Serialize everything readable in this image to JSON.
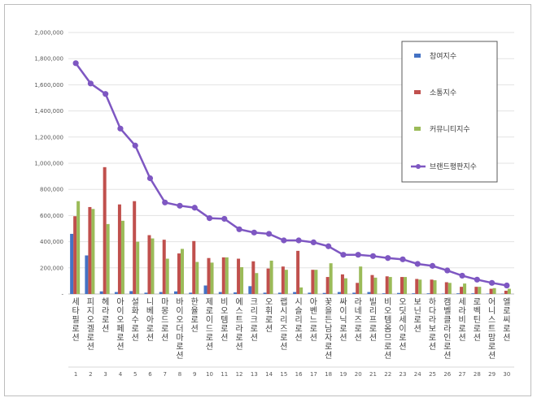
{
  "chart_data": {
    "type": "bar",
    "ylim": [
      0,
      2000000
    ],
    "yticks": [
      "-",
      "200,000",
      "400,000",
      "600,000",
      "800,000",
      "1,000,000",
      "1,200,000",
      "1,400,000",
      "1,600,000",
      "1,800,000",
      "2,000,000"
    ],
    "ytick_values": [
      0,
      200000,
      400000,
      600000,
      800000,
      1000000,
      1200000,
      1400000,
      1600000,
      1800000,
      2000000
    ],
    "categories": [
      "세타필로션",
      "피지오겔로션",
      "헤라로션",
      "아이오페로션",
      "설화수로션",
      "니베아로션",
      "마몽드로션",
      "바이오더마로션",
      "한율로션",
      "제로이드로션",
      "비오템로션",
      "에스트라로션",
      "크리크로션",
      "오휘로션",
      "랩시리즈로션",
      "시슬리로션",
      "아벤느로션",
      "꽃을든남자로션",
      "싸이닉로션",
      "라네즈로션",
      "빌리프로션",
      "비오템옴므로션",
      "오딧세이로션",
      "보닌로션",
      "하다라보로션",
      "캠벨클라인로션",
      "세라비로션",
      "로벡틴로션",
      "어니스트맘로션",
      "엘로씨로션"
    ],
    "ranks": [
      "1",
      "2",
      "3",
      "4",
      "5",
      "6",
      "7",
      "8",
      "9",
      "10",
      "11",
      "12",
      "13",
      "14",
      "15",
      "16",
      "17",
      "18",
      "19",
      "20",
      "21",
      "22",
      "23",
      "24",
      "25",
      "26",
      "27",
      "28",
      "29",
      "30"
    ],
    "legend_position": "right",
    "series": [
      {
        "name": "참여지수",
        "type": "bar",
        "color": "#4472c4",
        "values": [
          460000,
          295000,
          20000,
          15000,
          22000,
          10000,
          15000,
          20000,
          10000,
          65000,
          15000,
          12000,
          60000,
          10000,
          10000,
          15000,
          10000,
          8000,
          15000,
          10000,
          15000,
          5000,
          8000,
          5000,
          5000,
          3000,
          5000,
          5000,
          3000,
          2000
        ]
      },
      {
        "name": "소통지수",
        "type": "bar",
        "color": "#c0504d",
        "values": [
          595000,
          665000,
          970000,
          685000,
          710000,
          450000,
          415000,
          310000,
          405000,
          275000,
          280000,
          270000,
          250000,
          195000,
          210000,
          330000,
          185000,
          130000,
          150000,
          85000,
          145000,
          135000,
          130000,
          115000,
          110000,
          90000,
          55000,
          55000,
          40000,
          25000
        ]
      },
      {
        "name": "커뮤니티지수",
        "type": "bar",
        "color": "#9bbb59",
        "values": [
          710000,
          650000,
          535000,
          560000,
          400000,
          425000,
          270000,
          345000,
          245000,
          240000,
          280000,
          205000,
          160000,
          255000,
          185000,
          50000,
          185000,
          235000,
          120000,
          210000,
          125000,
          130000,
          130000,
          110000,
          105000,
          85000,
          80000,
          55000,
          45000,
          40000
        ]
      },
      {
        "name": "브랜드평판지수",
        "type": "line",
        "color": "#7e57c2",
        "values": [
          1765000,
          1610000,
          1530000,
          1265000,
          1135000,
          885000,
          700000,
          675000,
          660000,
          580000,
          575000,
          495000,
          470000,
          460000,
          410000,
          410000,
          395000,
          365000,
          300000,
          300000,
          290000,
          275000,
          265000,
          230000,
          215000,
          180000,
          140000,
          110000,
          85000,
          65000
        ]
      }
    ]
  }
}
